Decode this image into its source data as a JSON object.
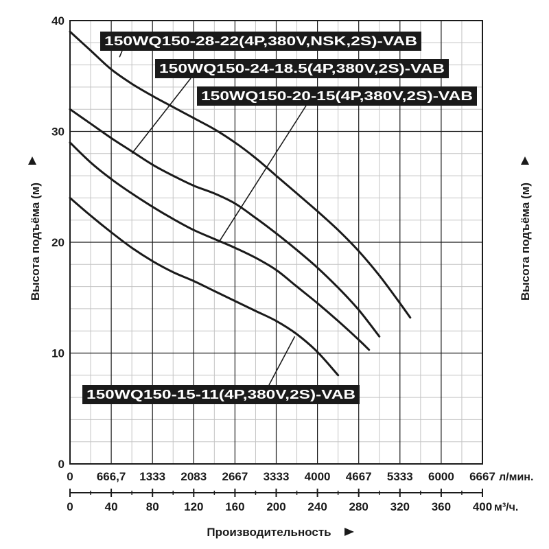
{
  "chart_data": {
    "type": "line",
    "ylabel": "Высота подъёма (м)",
    "y2label": "Высота подъёма (м)",
    "xlabel": "Производительность",
    "ylim": [
      0,
      40
    ],
    "xlim": [
      0,
      400
    ],
    "grid": true,
    "yticks": [
      "0",
      "10",
      "20",
      "30",
      "40"
    ],
    "x_lmin_ticks": [
      "0",
      "666,7",
      "1333",
      "2083",
      "2667",
      "3333",
      "4000",
      "4667",
      "5333",
      "6000",
      "6667"
    ],
    "x_lmin_unit": "л/мин.",
    "x_m3h_ticks": [
      "0",
      "40",
      "80",
      "120",
      "160",
      "200",
      "240",
      "280",
      "320",
      "360",
      "400"
    ],
    "x_m3h_unit": "м³/ч.",
    "series": [
      {
        "name": "150WQ150-28-22(4P,380V,NSK,2S)-VAB",
        "x": [
          0,
          20,
          40,
          60,
          80,
          100,
          120,
          140,
          160,
          180,
          200,
          220,
          240,
          260,
          280,
          300,
          320,
          330
        ],
        "y": [
          39,
          37.3,
          35.6,
          34.3,
          33.2,
          32.2,
          31.2,
          30.2,
          29.0,
          27.6,
          26.0,
          24.4,
          22.8,
          21.1,
          19.2,
          17.0,
          14.5,
          13.2
        ]
      },
      {
        "name": "150WQ150-24-18.5(4P,380V,2S)-VAB",
        "x": [
          0,
          20,
          40,
          60,
          80,
          100,
          120,
          140,
          160,
          180,
          200,
          220,
          240,
          260,
          280,
          300
        ],
        "y": [
          32,
          30.7,
          29.4,
          28.2,
          27.0,
          26.0,
          25.1,
          24.4,
          23.5,
          22.2,
          20.8,
          19.3,
          17.7,
          15.9,
          13.9,
          11.5
        ]
      },
      {
        "name": "150WQ150-20-15(4P,380V,2S)-VAB",
        "x": [
          0,
          20,
          40,
          60,
          80,
          100,
          120,
          140,
          160,
          180,
          200,
          220,
          240,
          260,
          280,
          290
        ],
        "y": [
          29,
          27.2,
          25.7,
          24.4,
          23.2,
          22.1,
          21.1,
          20.3,
          19.5,
          18.6,
          17.5,
          16.0,
          14.5,
          12.9,
          11.2,
          10.3
        ]
      },
      {
        "name": "150WQ150-15-11(4P,380V,2S)-VAB",
        "x": [
          0,
          20,
          40,
          60,
          80,
          100,
          120,
          140,
          160,
          180,
          200,
          220,
          240,
          260
        ],
        "y": [
          24,
          22.4,
          20.9,
          19.5,
          18.3,
          17.3,
          16.5,
          15.6,
          14.7,
          13.8,
          12.9,
          11.7,
          10.1,
          8.0
        ]
      }
    ]
  }
}
